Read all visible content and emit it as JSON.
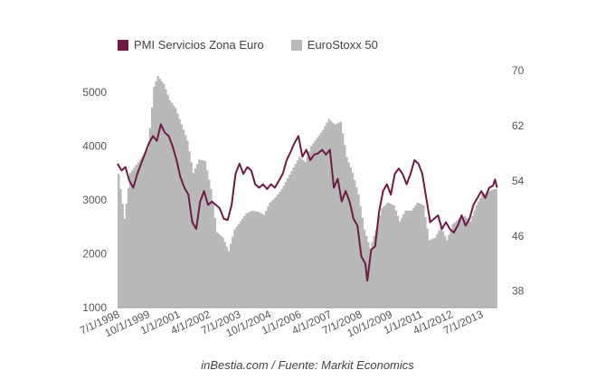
{
  "chart_data": {
    "type": "bar+line",
    "caption": "inBestia.com / Fuente: Markit Economics",
    "legend": [
      {
        "name": "PMI Servicios Zona Euro",
        "color": "#6e1a45",
        "kind": "line"
      },
      {
        "name": "EuroStoxx 50",
        "color": "#b8b8b8",
        "kind": "bar"
      }
    ],
    "x_ticks": [
      "7/1/1998",
      "10/1/1999",
      "1/1/2001",
      "4/1/2002",
      "7/1/2003",
      "10/1/2004",
      "1/1/2006",
      "4/1/2007",
      "7/1/2008",
      "10/1/2009",
      "1/1/2011",
      "4/1/2012",
      "7/1/2013"
    ],
    "y_left": {
      "ticks": [
        1000,
        2000,
        3000,
        4000,
        5000
      ],
      "range": [
        1000,
        5400
      ]
    },
    "y_right": {
      "ticks": [
        38,
        46,
        54,
        62,
        70
      ],
      "range": [
        35.6,
        70
      ]
    },
    "eurostoxx": [
      [
        "1998-07",
        3480
      ],
      [
        "1998-10",
        2650
      ],
      [
        "1999-01",
        3500
      ],
      [
        "1999-04",
        3650
      ],
      [
        "1999-07",
        3800
      ],
      [
        "1999-10",
        3950
      ],
      [
        "2000-01",
        5100
      ],
      [
        "2000-03",
        5300
      ],
      [
        "2000-06",
        5150
      ],
      [
        "2000-09",
        4850
      ],
      [
        "2000-12",
        4700
      ],
      [
        "2001-03",
        4400
      ],
      [
        "2001-06",
        4100
      ],
      [
        "2001-09",
        3500
      ],
      [
        "2001-12",
        3750
      ],
      [
        "2002-03",
        3720
      ],
      [
        "2002-06",
        3200
      ],
      [
        "2002-09",
        2400
      ],
      [
        "2002-12",
        2300
      ],
      [
        "2003-03",
        2050
      ],
      [
        "2003-06",
        2450
      ],
      [
        "2003-09",
        2600
      ],
      [
        "2003-12",
        2750
      ],
      [
        "2004-03",
        2800
      ],
      [
        "2004-06",
        2780
      ],
      [
        "2004-09",
        2720
      ],
      [
        "2004-12",
        2950
      ],
      [
        "2005-03",
        3050
      ],
      [
        "2005-06",
        3200
      ],
      [
        "2005-09",
        3400
      ],
      [
        "2005-12",
        3600
      ],
      [
        "2006-03",
        3800
      ],
      [
        "2006-06",
        3700
      ],
      [
        "2006-09",
        4000
      ],
      [
        "2006-12",
        4150
      ],
      [
        "2007-03",
        4300
      ],
      [
        "2007-06",
        4500
      ],
      [
        "2007-09",
        4400
      ],
      [
        "2007-12",
        4450
      ],
      [
        "2008-03",
        3800
      ],
      [
        "2008-06",
        3500
      ],
      [
        "2008-09",
        3100
      ],
      [
        "2008-12",
        2450
      ],
      [
        "2009-03",
        2100
      ],
      [
        "2009-06",
        2450
      ],
      [
        "2009-09",
        2850
      ],
      [
        "2009-12",
        2950
      ],
      [
        "2010-03",
        2900
      ],
      [
        "2010-06",
        2600
      ],
      [
        "2010-09",
        2800
      ],
      [
        "2010-12",
        2800
      ],
      [
        "2011-03",
        2950
      ],
      [
        "2011-06",
        2900
      ],
      [
        "2011-09",
        2250
      ],
      [
        "2011-12",
        2300
      ],
      [
        "2012-03",
        2500
      ],
      [
        "2012-06",
        2250
      ],
      [
        "2012-09",
        2550
      ],
      [
        "2012-12",
        2650
      ],
      [
        "2013-03",
        2700
      ],
      [
        "2013-06",
        2600
      ],
      [
        "2013-09",
        2900
      ],
      [
        "2013-12",
        3100
      ],
      [
        "2014-03",
        3150
      ],
      [
        "2014-06",
        3200
      ]
    ],
    "pmi": [
      [
        "1998-07",
        56.5
      ],
      [
        "1998-09",
        55.5
      ],
      [
        "1998-11",
        56
      ],
      [
        "1999-01",
        54
      ],
      [
        "1999-03",
        53
      ],
      [
        "1999-05",
        55
      ],
      [
        "1999-07",
        56.5
      ],
      [
        "1999-09",
        58
      ],
      [
        "1999-11",
        59.5
      ],
      [
        "2000-01",
        60.5
      ],
      [
        "2000-03",
        59.8
      ],
      [
        "2000-05",
        62.2
      ],
      [
        "2000-07",
        61
      ],
      [
        "2000-09",
        60.5
      ],
      [
        "2000-11",
        59
      ],
      [
        "2001-01",
        57
      ],
      [
        "2001-03",
        54.5
      ],
      [
        "2001-05",
        53
      ],
      [
        "2001-07",
        52
      ],
      [
        "2001-09",
        48
      ],
      [
        "2001-11",
        47
      ],
      [
        "2002-01",
        51
      ],
      [
        "2002-03",
        52.5
      ],
      [
        "2002-05",
        50.5
      ],
      [
        "2002-07",
        51
      ],
      [
        "2002-09",
        50.5
      ],
      [
        "2002-11",
        50
      ],
      [
        "2003-01",
        48.5
      ],
      [
        "2003-03",
        48.3
      ],
      [
        "2003-05",
        50.5
      ],
      [
        "2003-07",
        55
      ],
      [
        "2003-09",
        56.5
      ],
      [
        "2003-11",
        55
      ],
      [
        "2004-01",
        56
      ],
      [
        "2004-03",
        55.5
      ],
      [
        "2004-05",
        53.5
      ],
      [
        "2004-07",
        53
      ],
      [
        "2004-09",
        53.5
      ],
      [
        "2004-11",
        52.8
      ],
      [
        "2005-01",
        53.5
      ],
      [
        "2005-03",
        53
      ],
      [
        "2005-05",
        54
      ],
      [
        "2005-07",
        55
      ],
      [
        "2005-09",
        57
      ],
      [
        "2005-11",
        58.2
      ],
      [
        "2006-01",
        59.5
      ],
      [
        "2006-03",
        60.5
      ],
      [
        "2006-05",
        57.5
      ],
      [
        "2006-07",
        58.5
      ],
      [
        "2006-09",
        57
      ],
      [
        "2006-11",
        57.8
      ],
      [
        "2007-01",
        58
      ],
      [
        "2007-03",
        58.5
      ],
      [
        "2007-05",
        57.8
      ],
      [
        "2007-07",
        58.5
      ],
      [
        "2007-09",
        53
      ],
      [
        "2007-11",
        54.3
      ],
      [
        "2008-01",
        51
      ],
      [
        "2008-03",
        52.5
      ],
      [
        "2008-05",
        51
      ],
      [
        "2008-07",
        48.5
      ],
      [
        "2008-09",
        47.5
      ],
      [
        "2008-11",
        43
      ],
      [
        "2009-01",
        42
      ],
      [
        "2009-02",
        39.5
      ],
      [
        "2009-04",
        44
      ],
      [
        "2009-06",
        44.5
      ],
      [
        "2009-08",
        49.5
      ],
      [
        "2009-10",
        52.5
      ],
      [
        "2009-12",
        53.5
      ],
      [
        "2010-02",
        52
      ],
      [
        "2010-04",
        55
      ],
      [
        "2010-06",
        55.8
      ],
      [
        "2010-08",
        55
      ],
      [
        "2010-10",
        53.5
      ],
      [
        "2010-12",
        55
      ],
      [
        "2011-02",
        57
      ],
      [
        "2011-04",
        56.5
      ],
      [
        "2011-06",
        55
      ],
      [
        "2011-08",
        51.5
      ],
      [
        "2011-10",
        48
      ],
      [
        "2011-12",
        48.5
      ],
      [
        "2012-02",
        49
      ],
      [
        "2012-04",
        47
      ],
      [
        "2012-06",
        48
      ],
      [
        "2012-08",
        47
      ],
      [
        "2012-10",
        46.5
      ],
      [
        "2012-12",
        47.5
      ],
      [
        "2013-02",
        49
      ],
      [
        "2013-04",
        47.5
      ],
      [
        "2013-06",
        48.5
      ],
      [
        "2013-08",
        50.5
      ],
      [
        "2013-10",
        51.5
      ],
      [
        "2013-12",
        52.5
      ],
      [
        "2014-02",
        51.5
      ],
      [
        "2014-04",
        53
      ],
      [
        "2014-06",
        53.3
      ],
      [
        "2014-07",
        54.2
      ],
      [
        "2014-08",
        53
      ]
    ]
  }
}
